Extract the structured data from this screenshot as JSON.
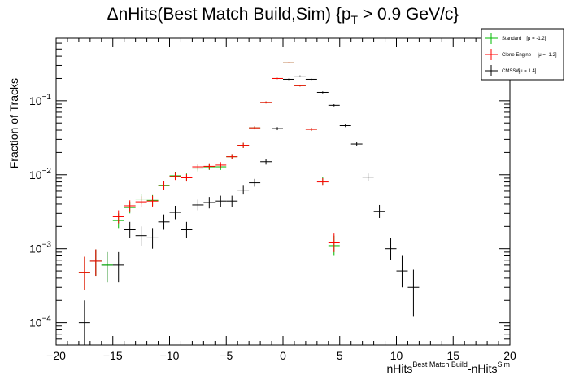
{
  "chart_data": {
    "type": "scatter",
    "title": {
      "prefix": "ΔnHits(Best Match Build,Sim) {p",
      "sub": "T",
      "suffix": " > 0.9 GeV/c}"
    },
    "xlabel": {
      "base1": "nHits",
      "sup1": "Best Match Build",
      "base2": "-nHits",
      "sup2": "Sim"
    },
    "ylabel": "Fraction of Tracks",
    "xlim": [
      -20,
      20
    ],
    "ylim": [
      5e-05,
      0.7
    ],
    "yscale": "log",
    "legend_position": "top-right",
    "x_ticks": [
      "−20",
      "−15",
      "−10",
      "−5",
      "0",
      "5",
      "10",
      "15",
      "20"
    ],
    "y_ticks": [
      {
        "base": "10",
        "exp": "−4",
        "value": 0.0001
      },
      {
        "base": "10",
        "exp": "−3",
        "value": 0.001
      },
      {
        "base": "10",
        "exp": "−2",
        "value": 0.01
      },
      {
        "base": "10",
        "exp": "−1",
        "value": 0.1
      }
    ],
    "series": [
      {
        "name": "Standard",
        "stat": "[μ = -1.2]",
        "color": "#00bb00",
        "points": [
          [
            -17.5,
            0.00048,
            0.0002,
            0.0003
          ],
          [
            -16.5,
            0.00068,
            0.00025,
            0.0003
          ],
          [
            -15.5,
            0.0006,
            0.00025,
            0.0003
          ],
          [
            -14.5,
            0.0024,
            0.0005,
            0.0006
          ],
          [
            -13.5,
            0.0036,
            0.0006,
            0.0007
          ],
          [
            -12.5,
            0.0047,
            0.0007,
            0.0008
          ],
          [
            -11.5,
            0.0045,
            0.0007,
            0.0008
          ],
          [
            -10.5,
            0.0071,
            0.0009,
            0.001
          ],
          [
            -9.5,
            0.0097,
            0.001,
            0.0011
          ],
          [
            -8.5,
            0.0093,
            0.001,
            0.0011
          ],
          [
            -7.5,
            0.0123,
            0.0012,
            0.0013
          ],
          [
            -6.5,
            0.0128,
            0.0012,
            0.0013
          ],
          [
            -5.5,
            0.0128,
            0.0012,
            0.0013
          ],
          [
            -4.5,
            0.0175,
            0.0014,
            0.0015
          ],
          [
            -3.5,
            0.025,
            0.002,
            0.002
          ],
          [
            -2.5,
            0.043,
            0.002,
            0.002
          ],
          [
            -1.5,
            0.095,
            0.003,
            0.003
          ],
          [
            -0.5,
            0.2,
            0.004,
            0.004
          ],
          [
            0.5,
            0.325,
            0.005,
            0.005
          ],
          [
            1.5,
            0.16,
            0.004,
            0.004
          ],
          [
            2.5,
            0.041,
            0.002,
            0.002
          ],
          [
            3.5,
            0.0082,
            0.001,
            0.0011
          ],
          [
            4.5,
            0.0011,
            0.0003,
            0.0004
          ]
        ]
      },
      {
        "name": "Clone Engine",
        "stat": "[μ = -1.2]",
        "color": "#ff0000",
        "points": [
          [
            -17.5,
            0.00048,
            0.0002,
            0.0003
          ],
          [
            -16.5,
            0.00068,
            0.00025,
            0.0003
          ],
          [
            -14.5,
            0.0027,
            0.0005,
            0.0006
          ],
          [
            -13.5,
            0.0038,
            0.0006,
            0.0007
          ],
          [
            -12.5,
            0.0043,
            0.0007,
            0.0008
          ],
          [
            -11.5,
            0.0044,
            0.0007,
            0.0008
          ],
          [
            -10.5,
            0.0072,
            0.0009,
            0.001
          ],
          [
            -9.5,
            0.0095,
            0.001,
            0.0011
          ],
          [
            -8.5,
            0.0091,
            0.001,
            0.0011
          ],
          [
            -7.5,
            0.0128,
            0.0012,
            0.0013
          ],
          [
            -6.5,
            0.013,
            0.0012,
            0.0013
          ],
          [
            -5.5,
            0.0135,
            0.0012,
            0.0013
          ],
          [
            -4.5,
            0.0175,
            0.0014,
            0.0015
          ],
          [
            -3.5,
            0.025,
            0.002,
            0.002
          ],
          [
            -2.5,
            0.043,
            0.002,
            0.002
          ],
          [
            -1.5,
            0.095,
            0.003,
            0.003
          ],
          [
            -0.5,
            0.2,
            0.004,
            0.004
          ],
          [
            0.5,
            0.325,
            0.005,
            0.005
          ],
          [
            1.5,
            0.16,
            0.004,
            0.004
          ],
          [
            2.5,
            0.041,
            0.002,
            0.002
          ],
          [
            3.5,
            0.008,
            0.0009,
            0.001
          ],
          [
            4.5,
            0.0012,
            0.0003,
            0.0004
          ]
        ]
      },
      {
        "name": "CMSSW",
        "stat": "[μ = 1.4]",
        "color": "#000000",
        "points": [
          [
            -17.5,
            0.0001,
            5e-05,
            0.0001
          ],
          [
            -16.5,
            0.00068,
            0.00025,
            0.0003
          ],
          [
            -15.5,
            0.0006,
            0.00025,
            0.0003
          ],
          [
            -14.5,
            0.0006,
            0.00025,
            0.0003
          ],
          [
            -13.5,
            0.0018,
            0.0004,
            0.0005
          ],
          [
            -12.5,
            0.0015,
            0.0004,
            0.0005
          ],
          [
            -11.5,
            0.0014,
            0.0004,
            0.0005
          ],
          [
            -10.5,
            0.0023,
            0.0005,
            0.0006
          ],
          [
            -9.5,
            0.0031,
            0.0006,
            0.0007
          ],
          [
            -8.5,
            0.0018,
            0.0004,
            0.0005
          ],
          [
            -7.5,
            0.0039,
            0.0006,
            0.0007
          ],
          [
            -6.5,
            0.0042,
            0.0007,
            0.0008
          ],
          [
            -5.5,
            0.0044,
            0.0007,
            0.0008
          ],
          [
            -4.5,
            0.0044,
            0.0007,
            0.0008
          ],
          [
            -3.5,
            0.0062,
            0.0008,
            0.0009
          ],
          [
            -2.5,
            0.0078,
            0.0009,
            0.001
          ],
          [
            -1.5,
            0.015,
            0.0013,
            0.0014
          ],
          [
            -0.5,
            0.042,
            0.002,
            0.002
          ],
          [
            0.5,
            0.195,
            0.004,
            0.004
          ],
          [
            1.5,
            0.215,
            0.005,
            0.005
          ],
          [
            2.5,
            0.195,
            0.004,
            0.004
          ],
          [
            3.5,
            0.13,
            0.004,
            0.004
          ],
          [
            4.5,
            0.087,
            0.003,
            0.003
          ],
          [
            5.5,
            0.046,
            0.002,
            0.002
          ],
          [
            6.5,
            0.026,
            0.0015,
            0.0016
          ],
          [
            7.5,
            0.0093,
            0.001,
            0.0011
          ],
          [
            8.5,
            0.0032,
            0.0006,
            0.0007
          ],
          [
            9.5,
            0.001,
            0.0003,
            0.0004
          ],
          [
            10.5,
            0.0005,
            0.0002,
            0.0003
          ],
          [
            11.5,
            0.0003,
            0.00018,
            0.00022
          ]
        ]
      }
    ]
  }
}
